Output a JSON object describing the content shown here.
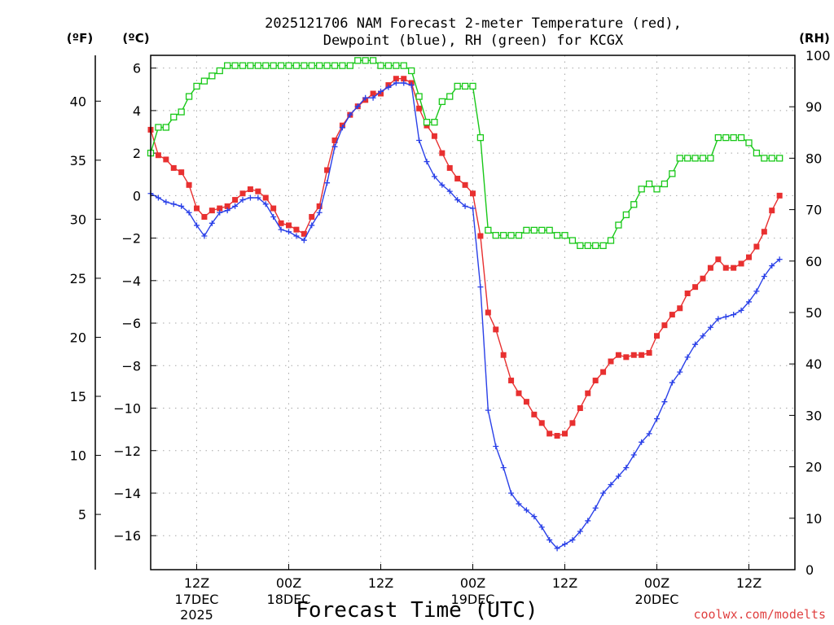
{
  "chart_data": {
    "type": "line",
    "title_line1": "2025121706 NAM Forecast 2-meter Temperature (red),",
    "title_line2": "Dewpoint (blue), RH (green) for KCGX",
    "xlabel": "Forecast Time (UTC)",
    "credit": "coolwx.com/modelts",
    "units": {
      "fahrenheit": "(ºF)",
      "celsius": "(ºC)",
      "rh": "(RH)"
    },
    "x_range_hours": [
      0,
      84
    ],
    "celsius_range": [
      -17.6,
      6.6
    ],
    "rh_range": [
      0,
      100
    ],
    "celsius_ticks": [
      6,
      4,
      2,
      0,
      -2,
      -4,
      -6,
      -8,
      -10,
      -12,
      -14,
      -16
    ],
    "celsius_tick_labels": [
      "6",
      "4",
      "2",
      "0",
      "−2",
      "−4",
      "−6",
      "−8",
      "−10",
      "−12",
      "−14",
      "−16"
    ],
    "fahrenheit_ticks": [
      40,
      35,
      30,
      25,
      20,
      15,
      10,
      5
    ],
    "fahrenheit_tick_labels": [
      "40",
      "35",
      "30",
      "25",
      "20",
      "15",
      "10",
      "5"
    ],
    "rh_ticks": [
      100,
      90,
      80,
      70,
      60,
      50,
      40,
      30,
      20,
      10,
      0
    ],
    "rh_tick_labels": [
      "100",
      "90",
      "80",
      "70",
      "60",
      "50",
      "40",
      "30",
      "20",
      "10",
      "0"
    ],
    "x_ticks": [
      {
        "hour": 6,
        "time": "12Z",
        "date": "17DEC",
        "year": "2025"
      },
      {
        "hour": 18,
        "time": "00Z",
        "date": "18DEC",
        "year": ""
      },
      {
        "hour": 30,
        "time": "12Z",
        "date": "",
        "year": ""
      },
      {
        "hour": 42,
        "time": "00Z",
        "date": "19DEC",
        "year": ""
      },
      {
        "hour": 54,
        "time": "12Z",
        "date": "",
        "year": ""
      },
      {
        "hour": 66,
        "time": "00Z",
        "date": "20DEC",
        "year": ""
      },
      {
        "hour": 78,
        "time": "12Z",
        "date": "",
        "year": ""
      }
    ],
    "series": [
      {
        "name": "Temperature",
        "units": "C",
        "color": "#e83030",
        "marker": "filled-square",
        "values": [
          3.1,
          1.9,
          1.7,
          1.3,
          1.1,
          0.5,
          -0.6,
          -1.0,
          -0.7,
          -0.6,
          -0.5,
          -0.2,
          0.1,
          0.3,
          0.2,
          -0.1,
          -0.6,
          -1.3,
          -1.4,
          -1.6,
          -1.8,
          -1.0,
          -0.5,
          1.2,
          2.6,
          3.3,
          3.8,
          4.2,
          4.5,
          4.8,
          4.8,
          5.2,
          5.5,
          5.5,
          5.3,
          4.1,
          3.3,
          2.8,
          2.0,
          1.3,
          0.8,
          0.5,
          0.1,
          -1.9,
          -5.5,
          -6.3,
          -7.5,
          -8.7,
          -9.3,
          -9.7,
          -10.3,
          -10.7,
          -11.2,
          -11.3,
          -11.2,
          -10.7,
          -10.0,
          -9.3,
          -8.7,
          -8.3,
          -7.8,
          -7.5,
          -7.6,
          -7.5,
          -7.5,
          -7.4,
          -6.6,
          -6.1,
          -5.6,
          -5.3,
          -4.6,
          -4.3,
          -3.9,
          -3.4,
          -3.0,
          -3.4,
          -3.4,
          -3.2,
          -2.9,
          -2.4,
          -1.7,
          -0.7,
          0.0
        ]
      },
      {
        "name": "Dewpoint",
        "units": "C",
        "color": "#2a40e8",
        "marker": "plus",
        "values": [
          0.1,
          -0.1,
          -0.3,
          -0.4,
          -0.5,
          -0.8,
          -1.4,
          -1.9,
          -1.3,
          -0.8,
          -0.7,
          -0.5,
          -0.2,
          -0.1,
          -0.1,
          -0.4,
          -1.0,
          -1.6,
          -1.7,
          -1.9,
          -2.1,
          -1.4,
          -0.8,
          0.6,
          2.3,
          3.2,
          3.8,
          4.2,
          4.6,
          4.6,
          4.9,
          5.1,
          5.3,
          5.3,
          5.2,
          2.6,
          1.6,
          0.9,
          0.5,
          0.2,
          -0.2,
          -0.5,
          -0.6,
          -4.3,
          -10.1,
          -11.8,
          -12.8,
          -14.0,
          -14.5,
          -14.8,
          -15.1,
          -15.6,
          -16.2,
          -16.6,
          -16.4,
          -16.2,
          -15.8,
          -15.3,
          -14.7,
          -14.0,
          -13.6,
          -13.2,
          -12.8,
          -12.2,
          -11.6,
          -11.2,
          -10.5,
          -9.7,
          -8.8,
          -8.3,
          -7.6,
          -7.0,
          -6.6,
          -6.2,
          -5.8,
          -5.7,
          -5.6,
          -5.4,
          -5.0,
          -4.5,
          -3.8,
          -3.3,
          -3.0
        ]
      },
      {
        "name": "RH",
        "units": "%",
        "color": "#19c819",
        "marker": "open-square",
        "values": [
          81,
          86,
          86,
          88,
          89,
          92,
          94,
          95,
          96,
          97,
          98,
          98,
          98,
          98,
          98,
          98,
          98,
          98,
          98,
          98,
          98,
          98,
          98,
          98,
          98,
          98,
          98,
          99,
          99,
          99,
          98,
          98,
          98,
          98,
          97,
          92,
          87,
          87,
          91,
          92,
          94,
          94,
          94,
          84,
          66,
          65,
          65,
          65,
          65,
          66,
          66,
          66,
          66,
          65,
          65,
          64,
          63,
          63,
          63,
          63,
          64,
          67,
          69,
          71,
          74,
          75,
          74,
          75,
          77,
          80,
          80,
          80,
          80,
          80,
          84,
          84,
          84,
          84,
          83,
          81,
          80,
          80,
          80
        ]
      }
    ]
  }
}
